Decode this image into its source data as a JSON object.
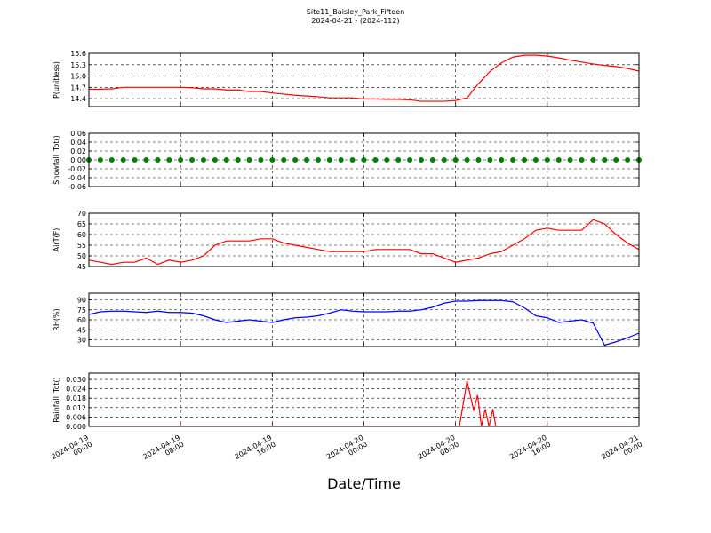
{
  "title": "Site11_Baisley_Park_Fifteen",
  "subtitle": "2024-04-21 - (2024-112)",
  "chart_data": [
    {
      "type": "line",
      "ylabel": "P(unitless)",
      "color": "#ff0000",
      "grid": true,
      "ylim": [
        14.19,
        15.6
      ],
      "yticks": [
        14.4,
        14.7,
        {
          "value": 15,
          "label": "15.0"
        },
        15.3,
        15.6
      ],
      "xlim": [
        "2024-04-19 00:00",
        "2024-04-21 00:00"
      ],
      "xticks": [
        "2024-04-19 00:00",
        "2024-04-19 08:00",
        "2024-04-19 16:00",
        "2024-04-20 00:00",
        "2024-04-20 08:00",
        "2024-04-20 16:00",
        "2024-04-21 00:00"
      ],
      "x": [
        "2024-04-19 00:00",
        "2024-04-19 01:00",
        "2024-04-19 02:00",
        "2024-04-19 03:00",
        "2024-04-19 04:00",
        "2024-04-19 05:00",
        "2024-04-19 06:00",
        "2024-04-19 07:00",
        "2024-04-19 08:00",
        "2024-04-19 09:00",
        "2024-04-19 10:00",
        "2024-04-19 11:00",
        "2024-04-19 12:00",
        "2024-04-19 13:00",
        "2024-04-19 14:00",
        "2024-04-19 15:00",
        "2024-04-19 16:00",
        "2024-04-19 17:00",
        "2024-04-19 18:00",
        "2024-04-19 19:00",
        "2024-04-19 20:00",
        "2024-04-19 21:00",
        "2024-04-19 22:00",
        "2024-04-19 23:00",
        "2024-04-20 00:00",
        "2024-04-20 01:00",
        "2024-04-20 02:00",
        "2024-04-20 03:00",
        "2024-04-20 04:00",
        "2024-04-20 05:00",
        "2024-04-20 06:00",
        "2024-04-20 07:00",
        "2024-04-20 08:00",
        "2024-04-20 09:00",
        "2024-04-20 10:00",
        "2024-04-20 11:00",
        "2024-04-20 12:00",
        "2024-04-20 13:00",
        "2024-04-20 14:00",
        "2024-04-20 15:00",
        "2024-04-20 16:00",
        "2024-04-20 17:00",
        "2024-04-20 18:00",
        "2024-04-20 19:00",
        "2024-04-20 20:00",
        "2024-04-20 21:00",
        "2024-04-20 22:00",
        "2024-04-20 23:00",
        "2024-04-21 00:00"
      ],
      "values": [
        14.65,
        14.65,
        14.66,
        14.7,
        14.7,
        14.7,
        14.7,
        14.7,
        14.7,
        14.69,
        14.66,
        14.66,
        14.63,
        14.63,
        14.59,
        14.59,
        14.55,
        14.52,
        14.49,
        14.47,
        14.45,
        14.42,
        14.42,
        14.42,
        14.39,
        14.39,
        14.38,
        14.38,
        14.37,
        14.33,
        14.33,
        14.33,
        14.35,
        14.42,
        14.8,
        15.12,
        15.35,
        15.5,
        15.55,
        15.55,
        15.53,
        15.48,
        15.42,
        15.37,
        15.32,
        15.28,
        15.25,
        15.2,
        15.13
      ]
    },
    {
      "type": "scatter",
      "ylabel": "Snowfall_Tot()",
      "color": "#008000",
      "grid": true,
      "ylim": [
        -0.06,
        0.06
      ],
      "yticks": [
        -0.06,
        -0.04,
        -0.02,
        {
          "value": 0,
          "label": "0.00"
        },
        0.02,
        0.04,
        0.06
      ],
      "xlim": [
        "2024-04-19 00:00",
        "2024-04-21 00:00"
      ],
      "xticks": [
        "2024-04-19 00:00",
        "2024-04-19 08:00",
        "2024-04-19 16:00",
        "2024-04-20 00:00",
        "2024-04-20 08:00",
        "2024-04-20 16:00",
        "2024-04-21 00:00"
      ],
      "x": [
        "2024-04-19 00:00",
        "2024-04-19 01:00",
        "2024-04-19 02:00",
        "2024-04-19 03:00",
        "2024-04-19 04:00",
        "2024-04-19 05:00",
        "2024-04-19 06:00",
        "2024-04-19 07:00",
        "2024-04-19 08:00",
        "2024-04-19 09:00",
        "2024-04-19 10:00",
        "2024-04-19 11:00",
        "2024-04-19 12:00",
        "2024-04-19 13:00",
        "2024-04-19 14:00",
        "2024-04-19 15:00",
        "2024-04-19 16:00",
        "2024-04-19 17:00",
        "2024-04-19 18:00",
        "2024-04-19 19:00",
        "2024-04-19 20:00",
        "2024-04-19 21:00",
        "2024-04-19 22:00",
        "2024-04-19 23:00",
        "2024-04-20 00:00",
        "2024-04-20 01:00",
        "2024-04-20 02:00",
        "2024-04-20 03:00",
        "2024-04-20 04:00",
        "2024-04-20 05:00",
        "2024-04-20 06:00",
        "2024-04-20 07:00",
        "2024-04-20 08:00",
        "2024-04-20 09:00",
        "2024-04-20 10:00",
        "2024-04-20 11:00",
        "2024-04-20 12:00",
        "2024-04-20 13:00",
        "2024-04-20 14:00",
        "2024-04-20 15:00",
        "2024-04-20 16:00",
        "2024-04-20 17:00",
        "2024-04-20 18:00",
        "2024-04-20 19:00",
        "2024-04-20 20:00",
        "2024-04-20 21:00",
        "2024-04-20 22:00",
        "2024-04-20 23:00",
        "2024-04-21 00:00"
      ],
      "values": [
        0,
        0,
        0,
        0,
        0,
        0,
        0,
        0,
        0,
        0,
        0,
        0,
        0,
        0,
        0,
        0,
        0,
        0,
        0,
        0,
        0,
        0,
        0,
        0,
        0,
        0,
        0,
        0,
        0,
        0,
        0,
        0,
        0,
        0,
        0,
        0,
        0,
        0,
        0,
        0,
        0,
        0,
        0,
        0,
        0,
        0,
        0,
        0,
        0
      ]
    },
    {
      "type": "line",
      "ylabel": "AirT(F)",
      "color": "#ff0000",
      "grid": true,
      "ylim": [
        45,
        70
      ],
      "yticks": [
        45,
        50,
        55,
        60,
        65,
        70
      ],
      "xlim": [
        "2024-04-19 00:00",
        "2024-04-21 00:00"
      ],
      "xticks": [
        "2024-04-19 00:00",
        "2024-04-19 08:00",
        "2024-04-19 16:00",
        "2024-04-20 00:00",
        "2024-04-20 08:00",
        "2024-04-20 16:00",
        "2024-04-21 00:00"
      ],
      "x": [
        "2024-04-19 00:00",
        "2024-04-19 01:00",
        "2024-04-19 02:00",
        "2024-04-19 03:00",
        "2024-04-19 04:00",
        "2024-04-19 05:00",
        "2024-04-19 06:00",
        "2024-04-19 07:00",
        "2024-04-19 08:00",
        "2024-04-19 09:00",
        "2024-04-19 10:00",
        "2024-04-19 11:00",
        "2024-04-19 12:00",
        "2024-04-19 13:00",
        "2024-04-19 14:00",
        "2024-04-19 15:00",
        "2024-04-19 16:00",
        "2024-04-19 17:00",
        "2024-04-19 18:00",
        "2024-04-19 19:00",
        "2024-04-19 20:00",
        "2024-04-19 21:00",
        "2024-04-19 22:00",
        "2024-04-19 23:00",
        "2024-04-20 00:00",
        "2024-04-20 01:00",
        "2024-04-20 02:00",
        "2024-04-20 03:00",
        "2024-04-20 04:00",
        "2024-04-20 05:00",
        "2024-04-20 06:00",
        "2024-04-20 07:00",
        "2024-04-20 08:00",
        "2024-04-20 09:00",
        "2024-04-20 10:00",
        "2024-04-20 11:00",
        "2024-04-20 12:00",
        "2024-04-20 13:00",
        "2024-04-20 14:00",
        "2024-04-20 15:00",
        "2024-04-20 16:00",
        "2024-04-20 17:00",
        "2024-04-20 18:00",
        "2024-04-20 19:00",
        "2024-04-20 20:00",
        "2024-04-20 21:00",
        "2024-04-20 22:00",
        "2024-04-20 23:00",
        "2024-04-21 00:00"
      ],
      "values": [
        48,
        47,
        46,
        47,
        47,
        49,
        46,
        48,
        47,
        48,
        50,
        55,
        57,
        57,
        57,
        58,
        58,
        56,
        55,
        54,
        53,
        52,
        52,
        52,
        52,
        53,
        53,
        53,
        53,
        51,
        51,
        49,
        47,
        48,
        49,
        51,
        52,
        55,
        58,
        62,
        63,
        62,
        62,
        62,
        67,
        65,
        60,
        56,
        53
      ]
    },
    {
      "type": "line",
      "ylabel": "RH(%)",
      "color": "#0000ff",
      "grid": true,
      "ylim": [
        20,
        100
      ],
      "yticks": [
        30,
        45,
        60,
        75,
        90
      ],
      "xlim": [
        "2024-04-19 00:00",
        "2024-04-21 00:00"
      ],
      "xticks": [
        "2024-04-19 00:00",
        "2024-04-19 08:00",
        "2024-04-19 16:00",
        "2024-04-20 00:00",
        "2024-04-20 08:00",
        "2024-04-20 16:00",
        "2024-04-21 00:00"
      ],
      "x": [
        "2024-04-19 00:00",
        "2024-04-19 01:00",
        "2024-04-19 02:00",
        "2024-04-19 03:00",
        "2024-04-19 04:00",
        "2024-04-19 05:00",
        "2024-04-19 06:00",
        "2024-04-19 07:00",
        "2024-04-19 08:00",
        "2024-04-19 09:00",
        "2024-04-19 10:00",
        "2024-04-19 11:00",
        "2024-04-19 12:00",
        "2024-04-19 13:00",
        "2024-04-19 14:00",
        "2024-04-19 15:00",
        "2024-04-19 16:00",
        "2024-04-19 17:00",
        "2024-04-19 18:00",
        "2024-04-19 19:00",
        "2024-04-19 20:00",
        "2024-04-19 21:00",
        "2024-04-19 22:00",
        "2024-04-19 23:00",
        "2024-04-20 00:00",
        "2024-04-20 01:00",
        "2024-04-20 02:00",
        "2024-04-20 03:00",
        "2024-04-20 04:00",
        "2024-04-20 05:00",
        "2024-04-20 06:00",
        "2024-04-20 07:00",
        "2024-04-20 08:00",
        "2024-04-20 09:00",
        "2024-04-20 10:00",
        "2024-04-20 11:00",
        "2024-04-20 12:00",
        "2024-04-20 13:00",
        "2024-04-20 14:00",
        "2024-04-20 15:00",
        "2024-04-20 16:00",
        "2024-04-20 17:00",
        "2024-04-20 18:00",
        "2024-04-20 19:00",
        "2024-04-20 20:00",
        "2024-04-20 21:00",
        "2024-04-20 22:00",
        "2024-04-20 23:00",
        "2024-04-21 00:00"
      ],
      "values": [
        68,
        72,
        73,
        73,
        72,
        71,
        73,
        71,
        71,
        70,
        66,
        60,
        56,
        58,
        60,
        58,
        56,
        60,
        63,
        64,
        66,
        70,
        75,
        73,
        72,
        72,
        72,
        73,
        73,
        75,
        79,
        85,
        88,
        88,
        89,
        89,
        89,
        87,
        78,
        66,
        63,
        56,
        58,
        60,
        55,
        22,
        27,
        33,
        40
      ]
    },
    {
      "type": "line",
      "ylabel": "Rainfall_Tot()",
      "xlabel": "Date/Time",
      "color": "#ff0000",
      "grid": true,
      "ylim": [
        0,
        0.034
      ],
      "yticks": [
        {
          "value": 0,
          "label": "0.000"
        },
        0.006,
        0.012,
        0.018,
        0.024,
        {
          "value": 0.03,
          "label": "0.030"
        }
      ],
      "xlim": [
        "2024-04-19 00:00",
        "2024-04-21 00:00"
      ],
      "xticks": [
        {
          "value": "2024-04-19 00:00",
          "label": "2024-04-19\n00:00"
        },
        {
          "value": "2024-04-19 08:00",
          "label": "2024-04-19\n08:00"
        },
        {
          "value": "2024-04-19 16:00",
          "label": "2024-04-19\n16:00"
        },
        {
          "value": "2024-04-20 00:00",
          "label": "2024-04-20\n00:00"
        },
        {
          "value": "2024-04-20 08:00",
          "label": "2024-04-20\n08:00"
        },
        {
          "value": "2024-04-20 16:00",
          "label": "2024-04-20\n16:00"
        },
        {
          "value": "2024-04-21 00:00",
          "label": "2024-04-21\n00:00"
        }
      ],
      "x": [
        "2024-04-19 00:00",
        "2024-04-20 08:20",
        "2024-04-20 09:00",
        "2024-04-20 09:35",
        "2024-04-20 09:55",
        "2024-04-20 10:15",
        "2024-04-20 10:35",
        "2024-04-20 10:55",
        "2024-04-20 11:15",
        "2024-04-20 11:30",
        "2024-04-21 00:00"
      ],
      "values": [
        0,
        0,
        0.029,
        0.01,
        0.02,
        0,
        0.011,
        0,
        0.011,
        0,
        0
      ]
    }
  ]
}
